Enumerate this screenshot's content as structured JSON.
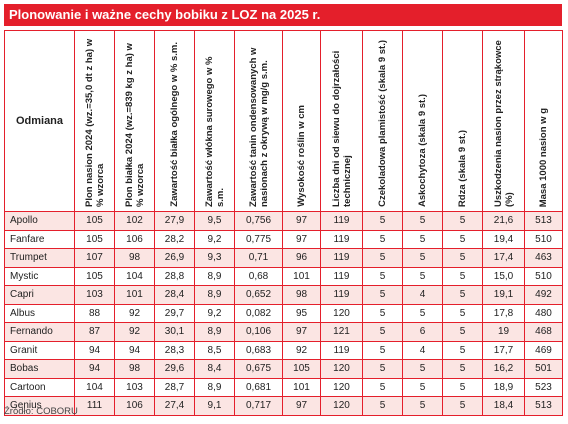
{
  "title": "Plonowanie i ważne cechy bobiku z LOZ na 2025 r.",
  "table": {
    "first_header": "Odmiana",
    "headers": [
      "Plon nasion 2024 (wz.=35,0 dt z ha) w % wzorca",
      "Plon białka 2024 (wz.=839 kg z ha) w % wzorca",
      "Zawartość białka ogólnego w % s.m.",
      "Zawartość włókna surowego w % s.m.",
      "Zawartość tanin ondensowanych w nasionach z okrywą w mg/g s.m.",
      "Wysokość roślin w cm",
      "Liczba dni od siewu do dojrzałości technicznej",
      "Czekoladowa plamistość (skala 9 st.)",
      "Askochytoza (skala 9 st.)",
      "Rdza (skala 9 st.)",
      "Uszkodzenia nasion przez strąkowce (%)",
      "Masa 1000 nasion w g"
    ],
    "rows": [
      {
        "name": "Apollo",
        "cells": [
          "105",
          "102",
          "27,9",
          "9,5",
          "0,756",
          "97",
          "119",
          "5",
          "5",
          "5",
          "21,6",
          "513"
        ]
      },
      {
        "name": "Fanfare",
        "cells": [
          "105",
          "106",
          "28,2",
          "9,2",
          "0,775",
          "97",
          "119",
          "5",
          "5",
          "5",
          "19,4",
          "510"
        ]
      },
      {
        "name": "Trumpet",
        "cells": [
          "107",
          "98",
          "26,9",
          "9,3",
          "0,71",
          "96",
          "119",
          "5",
          "5",
          "5",
          "17,4",
          "463"
        ]
      },
      {
        "name": "Mystic",
        "cells": [
          "105",
          "104",
          "28,8",
          "8,9",
          "0,68",
          "101",
          "119",
          "5",
          "5",
          "5",
          "15,0",
          "510"
        ]
      },
      {
        "name": "Capri",
        "cells": [
          "103",
          "101",
          "28,4",
          "8,9",
          "0,652",
          "98",
          "119",
          "5",
          "4",
          "5",
          "19,1",
          "492"
        ]
      },
      {
        "name": "Albus",
        "cells": [
          "88",
          "92",
          "29,7",
          "9,2",
          "0,082",
          "95",
          "120",
          "5",
          "5",
          "5",
          "17,8",
          "480"
        ]
      },
      {
        "name": "Fernando",
        "cells": [
          "87",
          "92",
          "30,1",
          "8,9",
          "0,106",
          "97",
          "121",
          "5",
          "6",
          "5",
          "19",
          "468"
        ]
      },
      {
        "name": "Granit",
        "cells": [
          "94",
          "94",
          "28,3",
          "8,5",
          "0,683",
          "92",
          "119",
          "5",
          "4",
          "5",
          "17,7",
          "469"
        ]
      },
      {
        "name": "Bobas",
        "cells": [
          "94",
          "98",
          "29,6",
          "8,4",
          "0,675",
          "105",
          "120",
          "5",
          "5",
          "5",
          "16,2",
          "501"
        ]
      },
      {
        "name": "Cartoon",
        "cells": [
          "104",
          "103",
          "28,7",
          "8,9",
          "0,681",
          "101",
          "120",
          "5",
          "5",
          "5",
          "18,9",
          "523"
        ]
      },
      {
        "name": "Genius",
        "cells": [
          "111",
          "106",
          "27,4",
          "9,1",
          "0,717",
          "97",
          "120",
          "5",
          "5",
          "5",
          "18,4",
          "513"
        ]
      }
    ]
  },
  "source": "Źródło: COBORU",
  "colors": {
    "accent": "#e41f2b",
    "row_tint": "#fbe5e3"
  }
}
